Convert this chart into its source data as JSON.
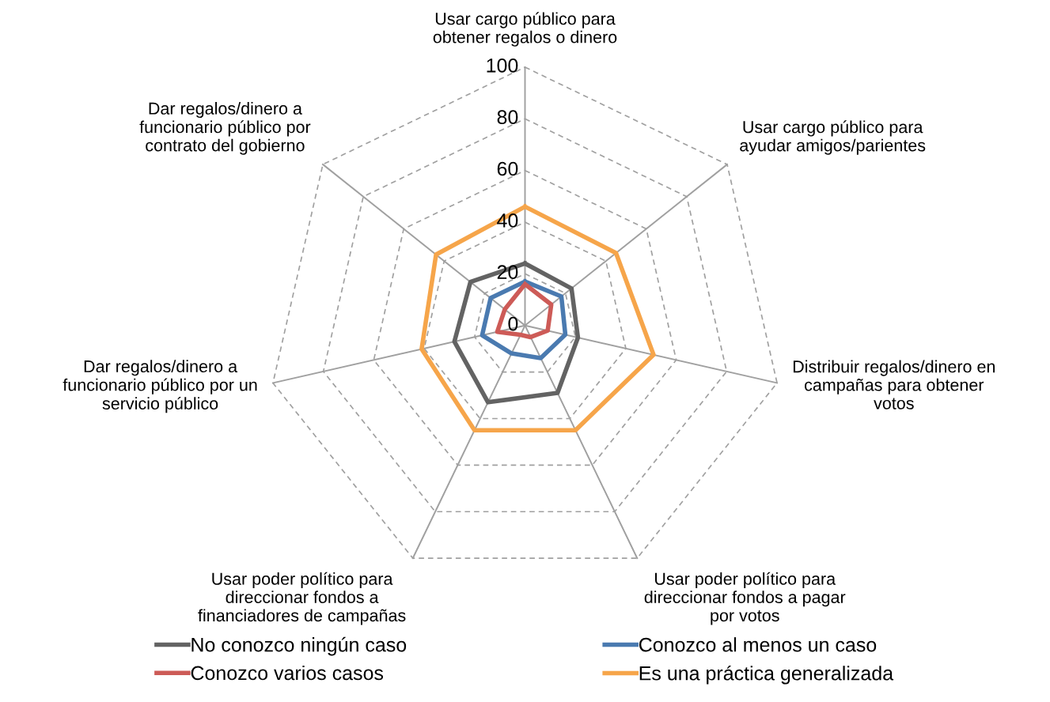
{
  "chart_data": {
    "type": "radar",
    "categories": [
      "Usar cargo público para\nobtener regalos o dinero",
      "Usar cargo público para\nayudar amigos/parientes",
      "Distribuir regalos/dinero en\ncampañas para obtener\nvotos",
      "Usar poder político para\ndireccionar fondos a pagar\npor votos",
      "Usar poder político para\ndireccionar fondos a\nfinanciadores de campañas",
      "Dar regalos/dinero a\nfuncionario público por un\nservicio público",
      "Dar regalos/dinero a\nfuncionario público por\ncontrato del gobierno"
    ],
    "series": [
      {
        "name": "No conozco ningún caso",
        "color": "#636363",
        "values": [
          24,
          23,
          21,
          29,
          33,
          28,
          27
        ]
      },
      {
        "name": "Conozco al menos un caso",
        "color": "#4a7ab0",
        "values": [
          17,
          18,
          16,
          14,
          12,
          17,
          17
        ]
      },
      {
        "name": "Conozco varios casos",
        "color": "#cd5b57",
        "values": [
          16,
          13,
          9,
          5,
          4,
          11,
          10
        ]
      },
      {
        "name": "Es una práctica generalizada",
        "color": "#f6a54a",
        "values": [
          46,
          45,
          51,
          45,
          45,
          41,
          44
        ]
      }
    ],
    "ylim": [
      0,
      100
    ],
    "yticks": [
      0,
      20,
      40,
      60,
      80,
      100
    ],
    "grid": true,
    "legend": "bottom",
    "marker": "none",
    "line_style": "solid"
  }
}
